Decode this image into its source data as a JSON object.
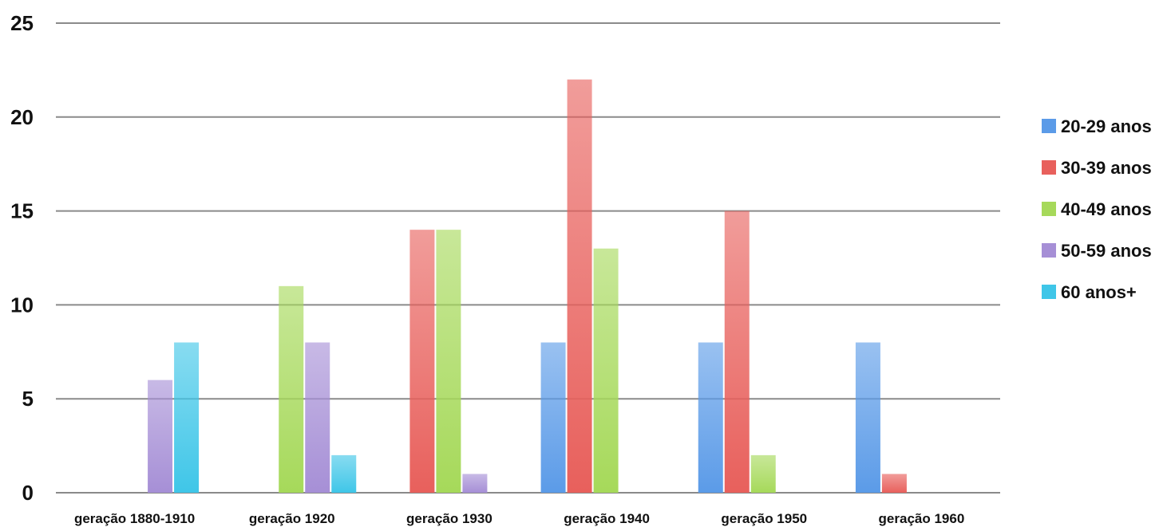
{
  "chart_data": {
    "type": "bar",
    "categories": [
      "geração 1880-1910",
      "geração 1920",
      "geração 1930",
      "geração 1940",
      "geração 1950",
      "geração 1960"
    ],
    "series": [
      {
        "name": "20-29 anos",
        "color": "#5b9be8",
        "values": [
          0,
          0,
          0,
          8,
          8,
          8
        ]
      },
      {
        "name": "30-39 anos",
        "color": "#e8605c",
        "values": [
          0,
          0,
          14,
          22,
          15,
          1
        ]
      },
      {
        "name": "40-49 anos",
        "color": "#a6d95a",
        "values": [
          0,
          11,
          14,
          13,
          2,
          0
        ]
      },
      {
        "name": "50-59 anos",
        "color": "#a68fd6",
        "values": [
          6,
          8,
          1,
          0,
          0,
          0
        ]
      },
      {
        "name": "60 anos+",
        "color": "#3fc6e8",
        "values": [
          8,
          2,
          0,
          0,
          0,
          0
        ]
      }
    ],
    "yticks": [
      0,
      5,
      10,
      15,
      20,
      25
    ],
    "ylim": [
      0,
      25
    ],
    "grid": true,
    "legend_position": "right"
  }
}
